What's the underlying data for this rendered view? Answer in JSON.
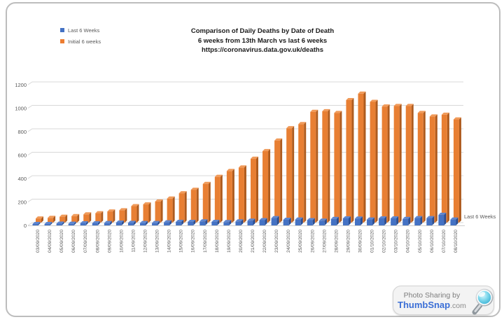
{
  "page": {
    "background": "#ffffff",
    "frame_border": "#bdbdbd"
  },
  "title": {
    "line1": "Comparison of Daily Deaths by Date of Death",
    "line2": "6 weeks from 13th March vs last 6 weeks",
    "line3": "https://coronavirus.data.gov.uk/deaths"
  },
  "legend": {
    "position": "top-left",
    "items": [
      {
        "label": "Last 6 Weeks",
        "color": "#4472C4"
      },
      {
        "label": "Initial 6 weeks",
        "color": "#ED7D31"
      }
    ]
  },
  "series_end_label": "Last 6 Weeks",
  "watermark": {
    "tagline": "Photo Sharing by",
    "brand": "ThumbSnap",
    "suffix": ".com",
    "brand_color": "#3b6fd6",
    "icon": "magnifier-icon"
  },
  "chart_data": {
    "type": "bar",
    "subtype": "3d-column",
    "title": "Comparison of Daily Deaths by Date of Death",
    "subtitle": "6 weeks from 13th March vs last 6 weeks",
    "source": "https://coronavirus.data.gov.uk/deaths",
    "xlabel": "",
    "ylabel": "",
    "ylim": [
      0,
      1200
    ],
    "yticks": [
      0,
      200,
      400,
      600,
      800,
      1000,
      1200
    ],
    "grid": true,
    "legend_position": "top-left",
    "categories": [
      "03/09/2020",
      "04/09/2020",
      "05/09/2020",
      "06/09/2020",
      "07/09/2020",
      "08/09/2020",
      "09/09/2020",
      "10/09/2020",
      "11/09/2020",
      "12/09/2020",
      "13/09/2020",
      "14/09/2020",
      "15/09/2020",
      "16/09/2020",
      "17/09/2020",
      "18/09/2020",
      "19/09/2020",
      "20/09/2020",
      "21/09/2020",
      "22/09/2020",
      "23/09/2020",
      "24/09/2020",
      "25/09/2020",
      "26/09/2020",
      "27/09/2020",
      "28/09/2020",
      "29/09/2020",
      "30/09/2020",
      "01/10/2020",
      "02/10/2020",
      "03/10/2020",
      "04/10/2020",
      "05/10/2020",
      "06/10/2020",
      "07/10/2020",
      "08/10/2020"
    ],
    "series": [
      {
        "name": "Last 6 Weeks",
        "color": "#4472C4",
        "side_color": "#2B4F93",
        "top_color": "#5E86CF",
        "values": [
          12,
          12,
          15,
          14,
          18,
          18,
          20,
          24,
          22,
          20,
          20,
          26,
          30,
          30,
          34,
          30,
          28,
          34,
          40,
          45,
          62,
          48,
          50,
          45,
          40,
          55,
          60,
          58,
          50,
          60,
          60,
          55,
          62,
          62,
          90,
          50
        ]
      },
      {
        "name": "Initial 6 weeks",
        "color": "#E87F33",
        "side_color": "#AE5B1E",
        "top_color": "#F09A59",
        "values": [
          35,
          40,
          50,
          55,
          70,
          80,
          95,
          105,
          140,
          155,
          180,
          205,
          250,
          280,
          330,
          390,
          440,
          470,
          545,
          610,
          700,
          805,
          840,
          945,
          950,
          935,
          1045,
          1100,
          1030,
          990,
          995,
          995,
          935,
          905,
          920,
          880
        ]
      }
    ]
  }
}
